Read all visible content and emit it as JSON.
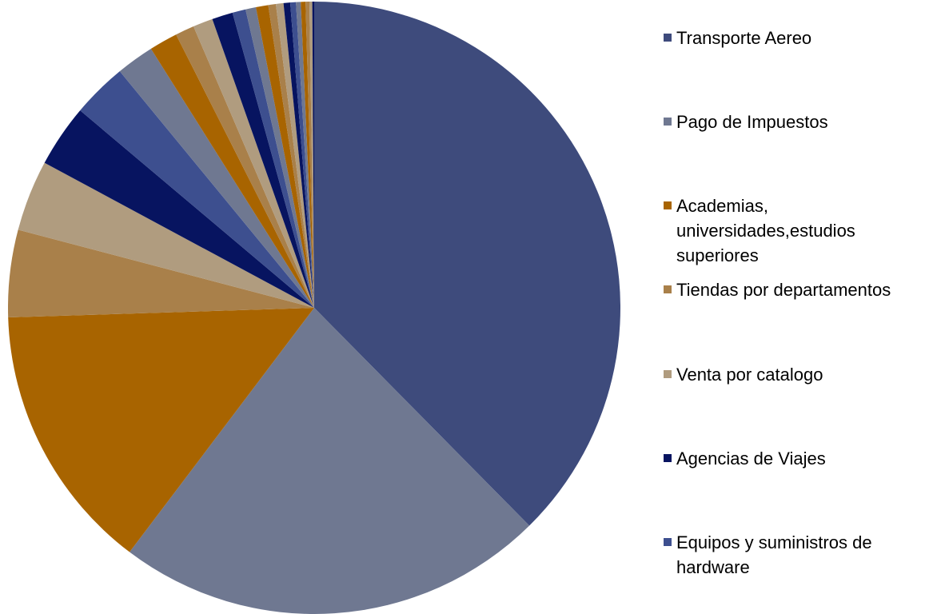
{
  "chart_data": {
    "type": "pie",
    "categories": [
      "Transporte Aereo",
      "Pago de Impuestos",
      "Academias, universidades,estudios superiores",
      "Tiendas por departamentos",
      "Venta por catalogo",
      "Agencias de Viajes",
      "Equipos y suministros de hardware",
      null,
      null,
      null,
      null,
      null,
      null,
      null,
      null,
      null,
      null,
      null,
      null,
      null,
      null,
      null,
      null,
      null
    ],
    "values": [
      37.6,
      22.7,
      14.2,
      4.6,
      3.75,
      3.3,
      2.9,
      2.0,
      1.5,
      1.0,
      1.05,
      1.1,
      0.7,
      0.55,
      0.65,
      0.4,
      0.4,
      0.35,
      0.3,
      0.25,
      0.25,
      0.2,
      0.15,
      0.1
    ],
    "colors": [
      "#3e4b7c",
      "#6f7891",
      "#a86400",
      "#a9804a",
      "#b09c7f",
      "#071460",
      "#3d4f8f",
      "#6f7891",
      "#a86400",
      "#a9804a",
      "#b09c7f",
      "#071460",
      "#3d4f8f",
      "#6f7891",
      "#a86400",
      "#a9804a",
      "#b09c7f",
      "#071460",
      "#3d4f8f",
      "#6f7891",
      "#a86400",
      "#a9804a",
      "#b09c7f",
      "#071460"
    ],
    "legend": "right"
  }
}
